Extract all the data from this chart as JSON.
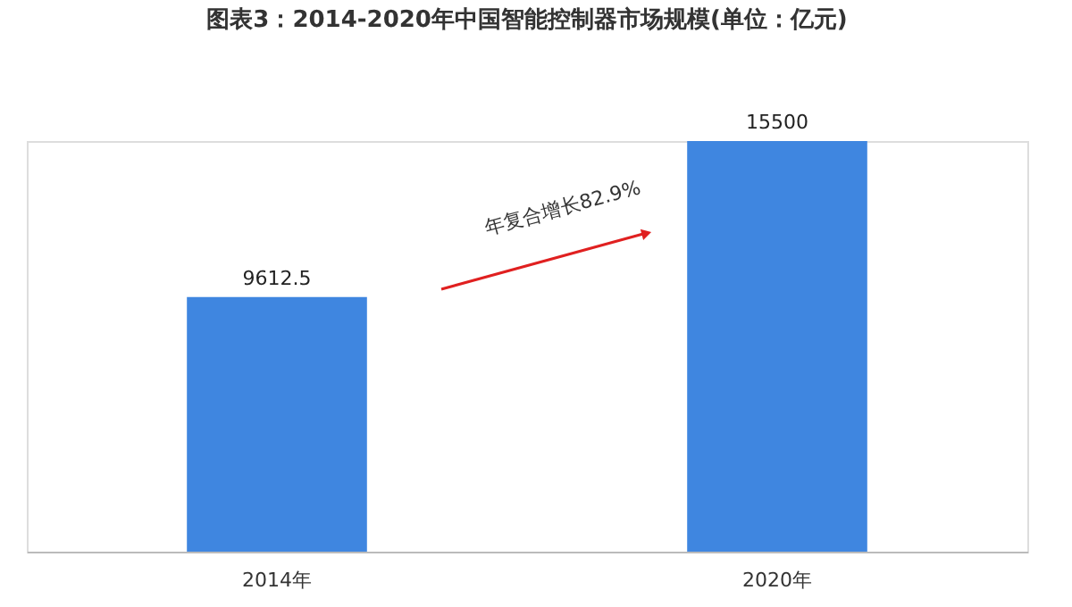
{
  "chart_data": {
    "type": "bar",
    "title": "图表3：2014-2020年中国智能控制器市场规模(单位：亿元)",
    "categories": [
      "2014年",
      "2020年"
    ],
    "values": [
      9612.5,
      15500
    ],
    "color": "#3f86e0",
    "data_labels": true,
    "annotations": [
      "年复合增长82.9%"
    ]
  }
}
